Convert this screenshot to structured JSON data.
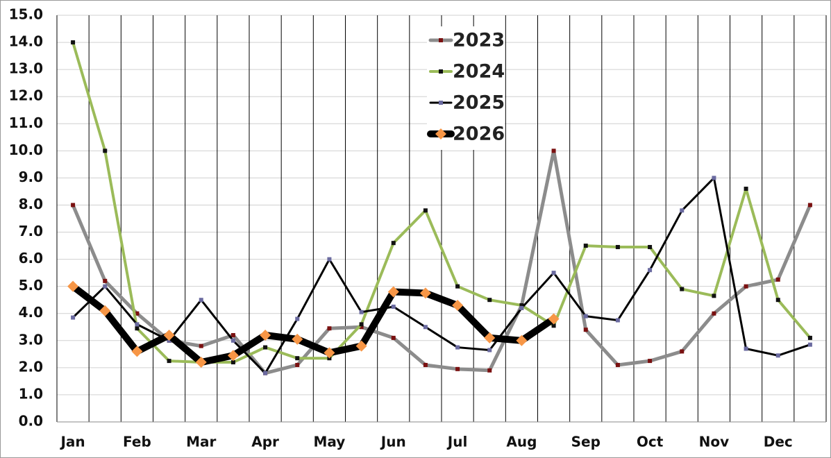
{
  "chart_data": {
    "type": "line",
    "categories": [
      "Jan",
      null,
      "Feb",
      null,
      "Mar",
      null,
      "Apr",
      null,
      "May",
      null,
      "Jun",
      null,
      "Jul",
      null,
      "Aug",
      null,
      "Sep",
      null,
      "Oct",
      null,
      "Nov",
      null,
      "Dec",
      null
    ],
    "series": [
      {
        "name": "2023",
        "color": "#8c8c8c",
        "marker_color": "#7a1010",
        "width": 5,
        "values": [
          8.0,
          5.2,
          4.0,
          3.0,
          2.8,
          3.2,
          1.8,
          2.1,
          3.45,
          3.5,
          3.1,
          2.1,
          1.95,
          1.9,
          4.3,
          10.0,
          3.4,
          2.1,
          2.25,
          2.6,
          4.0,
          5.0,
          5.25,
          8.0
        ]
      },
      {
        "name": "2024",
        "color": "#9bbb59",
        "marker_color": "#111111",
        "width": 4,
        "values": [
          14.0,
          10.0,
          3.45,
          2.25,
          2.2,
          2.2,
          2.75,
          2.35,
          2.35,
          3.6,
          6.6,
          7.8,
          5.0,
          4.5,
          4.3,
          3.55,
          6.5,
          6.45,
          6.45,
          4.9,
          4.65,
          8.6,
          4.5,
          3.1
        ]
      },
      {
        "name": "2025",
        "color": "#000000",
        "marker_color": "#6a6aa0",
        "width": 3,
        "values": [
          3.85,
          5.0,
          3.6,
          3.0,
          4.5,
          3.0,
          1.8,
          3.8,
          6.0,
          4.05,
          4.25,
          3.5,
          2.75,
          2.65,
          4.2,
          5.5,
          3.9,
          3.75,
          5.6,
          7.8,
          9.0,
          2.7,
          2.45,
          2.85
        ]
      },
      {
        "name": "2026",
        "color": "#000000",
        "marker_color": "#f79646",
        "width": 10,
        "values": [
          5.0,
          4.1,
          2.6,
          3.2,
          2.2,
          2.45,
          3.2,
          3.05,
          2.55,
          2.8,
          4.8,
          4.75,
          4.3,
          3.1,
          3.0,
          3.8,
          null,
          null,
          null,
          null,
          null,
          null,
          null,
          null
        ]
      }
    ],
    "ylim": [
      0,
      15
    ],
    "yticks": [
      {
        "value": 0,
        "label": "0.0"
      },
      {
        "value": 1,
        "label": "1.0"
      },
      {
        "value": 2,
        "label": "2.0"
      },
      {
        "value": 3,
        "label": "3.0"
      },
      {
        "value": 4,
        "label": "4.0"
      },
      {
        "value": 5,
        "label": "5.0"
      },
      {
        "value": 6,
        "label": "6.0"
      },
      {
        "value": 7,
        "label": "7.0"
      },
      {
        "value": 8,
        "label": "8.0"
      },
      {
        "value": 9,
        "label": "9.0"
      },
      {
        "value": 10,
        "label": "10.0"
      },
      {
        "value": 11,
        "label": "11.0"
      },
      {
        "value": 12,
        "label": "12.0"
      },
      {
        "value": 13,
        "label": "13.0"
      },
      {
        "value": 14,
        "label": "14.0"
      },
      {
        "value": 15,
        "label": "15.0"
      }
    ],
    "grid": true,
    "legend": "top-center"
  }
}
